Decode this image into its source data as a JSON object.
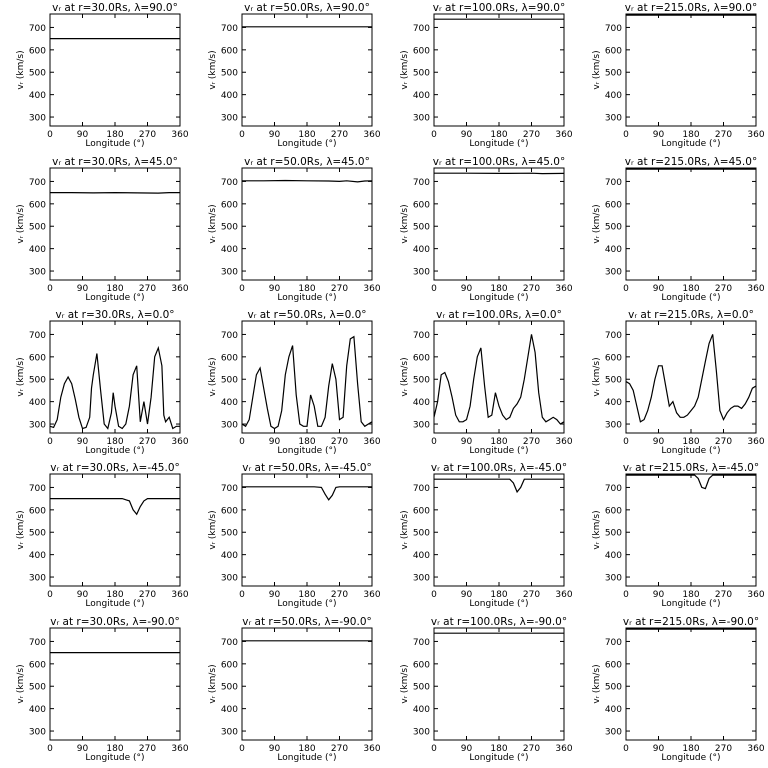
{
  "shared": {
    "xlabel": "Longitude (°)",
    "ylabel": "vᵣ (km/s)",
    "xlim": [
      0,
      360
    ],
    "ylim": [
      260,
      760
    ],
    "xticks": [
      0,
      90,
      180,
      270,
      360
    ],
    "yticks": [
      300,
      400,
      500,
      600,
      700
    ],
    "grid": false,
    "line_color": "#000000"
  },
  "chart_data": [
    {
      "type": "line",
      "title": "vᵣ at r=30.0Rs, λ=90.0°",
      "xlabel": "Longitude (°)",
      "ylabel": "vᵣ (km/s)",
      "xlim": [
        0,
        360
      ],
      "ylim": [
        260,
        760
      ],
      "x": [
        0,
        360
      ],
      "y": [
        650,
        650
      ]
    },
    {
      "type": "line",
      "title": "vᵣ at r=50.0Rs, λ=90.0°",
      "xlabel": "Longitude (°)",
      "ylabel": "vᵣ (km/s)",
      "xlim": [
        0,
        360
      ],
      "ylim": [
        260,
        760
      ],
      "x": [
        0,
        360
      ],
      "y": [
        703,
        703
      ]
    },
    {
      "type": "line",
      "title": "vᵣ at r=100.0Rs, λ=90.0°",
      "xlabel": "Longitude (°)",
      "ylabel": "vᵣ (km/s)",
      "xlim": [
        0,
        360
      ],
      "ylim": [
        260,
        760
      ],
      "x": [
        0,
        360
      ],
      "y": [
        737,
        737
      ]
    },
    {
      "type": "line",
      "title": "vᵣ at r=215.0Rs, λ=90.0°",
      "xlabel": "Longitude (°)",
      "ylabel": "vᵣ (km/s)",
      "xlim": [
        0,
        360
      ],
      "ylim": [
        260,
        760
      ],
      "x": [
        0,
        360
      ],
      "y": [
        755,
        755
      ]
    },
    {
      "type": "line",
      "title": "vᵣ at r=30.0Rs, λ=45.0°",
      "xlabel": "Longitude (°)",
      "ylabel": "vᵣ (km/s)",
      "xlim": [
        0,
        360
      ],
      "ylim": [
        260,
        760
      ],
      "x": [
        0,
        60,
        120,
        180,
        240,
        300,
        330,
        360
      ],
      "y": [
        650,
        650,
        649,
        650,
        649,
        648,
        650,
        650
      ]
    },
    {
      "type": "line",
      "title": "vᵣ at r=50.0Rs, λ=45.0°",
      "xlabel": "Longitude (°)",
      "ylabel": "vᵣ (km/s)",
      "xlim": [
        0,
        360
      ],
      "ylim": [
        260,
        760
      ],
      "x": [
        0,
        60,
        120,
        180,
        240,
        270,
        290,
        320,
        340,
        360
      ],
      "y": [
        703,
        703,
        704,
        703,
        702,
        700,
        703,
        698,
        702,
        703
      ]
    },
    {
      "type": "line",
      "title": "vᵣ at r=100.0Rs, λ=45.0°",
      "xlabel": "Longitude (°)",
      "ylabel": "vᵣ (km/s)",
      "xlim": [
        0,
        360
      ],
      "ylim": [
        260,
        760
      ],
      "x": [
        0,
        90,
        180,
        270,
        300,
        360
      ],
      "y": [
        737,
        737,
        736,
        737,
        735,
        736
      ]
    },
    {
      "type": "line",
      "title": "vᵣ at r=215.0Rs, λ=45.0°",
      "xlabel": "Longitude (°)",
      "ylabel": "vᵣ (km/s)",
      "xlim": [
        0,
        360
      ],
      "ylim": [
        260,
        760
      ],
      "x": [
        0,
        360
      ],
      "y": [
        755,
        755
      ]
    },
    {
      "type": "line",
      "title": "vᵣ at r=30.0Rs, λ=0.0°",
      "xlabel": "Longitude (°)",
      "ylabel": "vᵣ (km/s)",
      "xlim": [
        0,
        360
      ],
      "ylim": [
        260,
        760
      ],
      "x": [
        0,
        10,
        20,
        30,
        40,
        50,
        60,
        70,
        80,
        90,
        100,
        110,
        115,
        120,
        130,
        140,
        150,
        155,
        160,
        170,
        175,
        180,
        190,
        200,
        210,
        220,
        230,
        240,
        250,
        260,
        270,
        280,
        290,
        300,
        310,
        315,
        320,
        330,
        340,
        350,
        360
      ],
      "y": [
        290,
        285,
        320,
        420,
        480,
        510,
        480,
        410,
        330,
        280,
        285,
        330,
        460,
        520,
        615,
        450,
        300,
        290,
        280,
        350,
        440,
        380,
        290,
        280,
        300,
        380,
        520,
        560,
        310,
        400,
        300,
        420,
        600,
        640,
        560,
        340,
        310,
        330,
        280,
        290,
        290
      ]
    },
    {
      "type": "line",
      "title": "vᵣ at r=50.0Rs, λ=0.0°",
      "xlabel": "Longitude (°)",
      "ylabel": "vᵣ (km/s)",
      "xlim": [
        0,
        360
      ],
      "ylim": [
        260,
        760
      ],
      "x": [
        0,
        10,
        20,
        30,
        40,
        50,
        60,
        70,
        80,
        90,
        100,
        110,
        120,
        130,
        140,
        150,
        160,
        170,
        180,
        190,
        200,
        210,
        220,
        230,
        240,
        250,
        260,
        270,
        280,
        290,
        300,
        310,
        320,
        330,
        340,
        350,
        360
      ],
      "y": [
        300,
        290,
        320,
        420,
        520,
        550,
        460,
        370,
        290,
        280,
        290,
        360,
        520,
        600,
        650,
        430,
        300,
        290,
        290,
        430,
        380,
        290,
        290,
        330,
        470,
        570,
        500,
        320,
        330,
        560,
        680,
        690,
        480,
        310,
        290,
        300,
        310
      ]
    },
    {
      "type": "line",
      "title": "vᵣ at r=100.0Rs, λ=0.0°",
      "xlabel": "Longitude (°)",
      "ylabel": "vᵣ (km/s)",
      "xlim": [
        0,
        360
      ],
      "ylim": [
        260,
        760
      ],
      "x": [
        0,
        10,
        20,
        30,
        40,
        50,
        60,
        70,
        80,
        90,
        100,
        110,
        120,
        130,
        140,
        150,
        160,
        170,
        180,
        190,
        200,
        210,
        220,
        230,
        240,
        250,
        260,
        270,
        280,
        290,
        300,
        310,
        320,
        330,
        340,
        350,
        360
      ],
      "y": [
        330,
        400,
        520,
        530,
        490,
        420,
        340,
        310,
        310,
        320,
        380,
        500,
        600,
        640,
        470,
        330,
        340,
        440,
        380,
        340,
        320,
        330,
        370,
        390,
        420,
        500,
        600,
        700,
        620,
        440,
        330,
        310,
        320,
        330,
        320,
        300,
        310
      ]
    },
    {
      "type": "line",
      "title": "vᵣ at r=215.0Rs, λ=0.0°",
      "xlabel": "Longitude (°)",
      "ylabel": "vᵣ (km/s)",
      "xlim": [
        0,
        360
      ],
      "ylim": [
        260,
        760
      ],
      "x": [
        0,
        10,
        20,
        30,
        40,
        50,
        60,
        70,
        80,
        90,
        100,
        110,
        120,
        130,
        140,
        150,
        160,
        170,
        180,
        190,
        200,
        210,
        220,
        230,
        240,
        250,
        260,
        270,
        280,
        290,
        300,
        310,
        320,
        330,
        340,
        350,
        360
      ],
      "y": [
        490,
        480,
        450,
        380,
        310,
        320,
        360,
        420,
        500,
        560,
        560,
        470,
        380,
        400,
        350,
        330,
        330,
        340,
        360,
        380,
        420,
        500,
        580,
        660,
        700,
        540,
        360,
        320,
        350,
        370,
        380,
        380,
        370,
        390,
        420,
        460,
        470
      ]
    },
    {
      "type": "line",
      "title": "vᵣ at r=30.0Rs, λ=-45.0°",
      "xlabel": "Longitude (°)",
      "ylabel": "vᵣ (km/s)",
      "xlim": [
        0,
        360
      ],
      "ylim": [
        260,
        760
      ],
      "x": [
        0,
        200,
        220,
        230,
        240,
        250,
        260,
        270,
        360
      ],
      "y": [
        650,
        650,
        640,
        600,
        580,
        615,
        640,
        650,
        650
      ]
    },
    {
      "type": "line",
      "title": "vᵣ at r=50.0Rs, λ=-45.0°",
      "xlabel": "Longitude (°)",
      "ylabel": "vᵣ (km/s)",
      "xlim": [
        0,
        360
      ],
      "ylim": [
        260,
        760
      ],
      "x": [
        0,
        200,
        220,
        230,
        240,
        250,
        260,
        270,
        360
      ],
      "y": [
        703,
        703,
        700,
        670,
        645,
        665,
        700,
        703,
        703
      ]
    },
    {
      "type": "line",
      "title": "vᵣ at r=100.0Rs, λ=-45.0°",
      "xlabel": "Longitude (°)",
      "ylabel": "vᵣ (km/s)",
      "xlim": [
        0,
        360
      ],
      "ylim": [
        260,
        760
      ],
      "x": [
        0,
        210,
        220,
        230,
        240,
        250,
        360
      ],
      "y": [
        737,
        737,
        720,
        680,
        700,
        737,
        737
      ]
    },
    {
      "type": "line",
      "title": "vᵣ at r=215.0Rs, λ=-45.0°",
      "xlabel": "Longitude (°)",
      "ylabel": "vᵣ (km/s)",
      "xlim": [
        0,
        360
      ],
      "ylim": [
        260,
        760
      ],
      "x": [
        0,
        190,
        200,
        210,
        220,
        230,
        240,
        360
      ],
      "y": [
        755,
        755,
        740,
        700,
        695,
        740,
        755,
        755
      ]
    },
    {
      "type": "line",
      "title": "vᵣ at r=30.0Rs, λ=-90.0°",
      "xlabel": "Longitude (°)",
      "ylabel": "vᵣ (km/s)",
      "xlim": [
        0,
        360
      ],
      "ylim": [
        260,
        760
      ],
      "x": [
        0,
        360
      ],
      "y": [
        650,
        650
      ]
    },
    {
      "type": "line",
      "title": "vᵣ at r=50.0Rs, λ=-90.0°",
      "xlabel": "Longitude (°)",
      "ylabel": "vᵣ (km/s)",
      "xlim": [
        0,
        360
      ],
      "ylim": [
        260,
        760
      ],
      "x": [
        0,
        360
      ],
      "y": [
        703,
        703
      ]
    },
    {
      "type": "line",
      "title": "vᵣ at r=100.0Rs, λ=-90.0°",
      "xlabel": "Longitude (°)",
      "ylabel": "vᵣ (km/s)",
      "xlim": [
        0,
        360
      ],
      "ylim": [
        260,
        760
      ],
      "x": [
        0,
        360
      ],
      "y": [
        737,
        737
      ]
    },
    {
      "type": "line",
      "title": "vᵣ at r=215.0Rs, λ=-90.0°",
      "xlabel": "Longitude (°)",
      "ylabel": "vᵣ (km/s)",
      "xlim": [
        0,
        360
      ],
      "ylim": [
        260,
        760
      ],
      "x": [
        0,
        360
      ],
      "y": [
        755,
        755
      ]
    }
  ]
}
